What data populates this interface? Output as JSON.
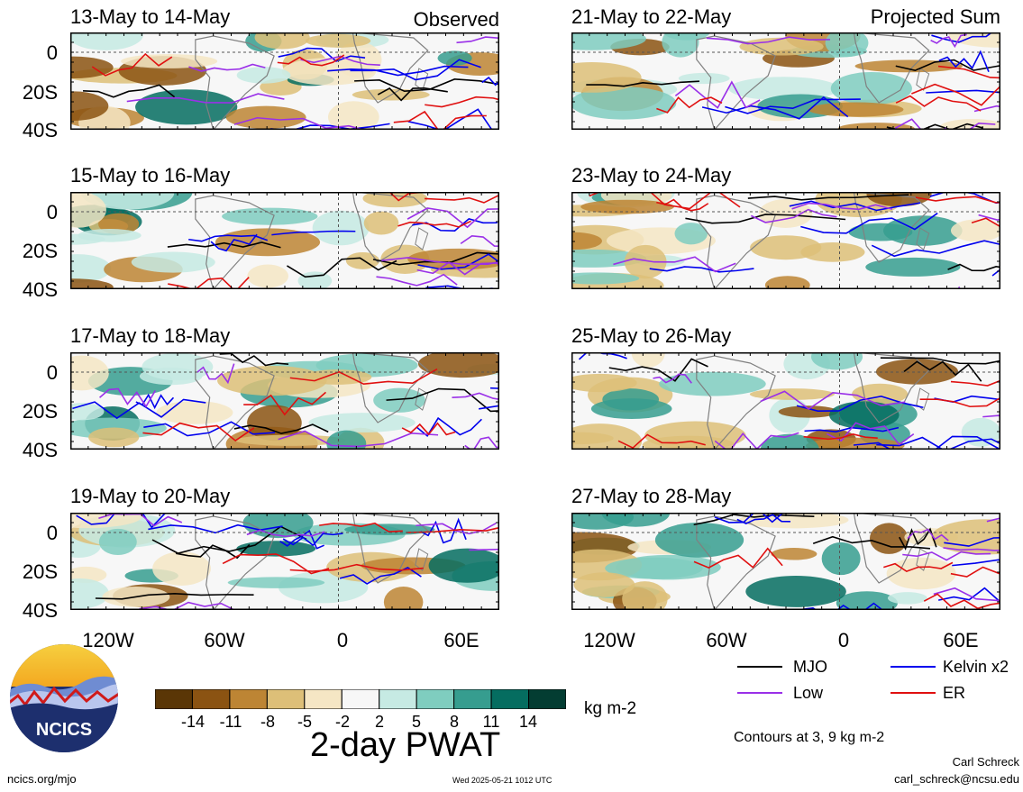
{
  "panels_left": [
    {
      "title": "13-May to 14-May",
      "tag": "Observed"
    },
    {
      "title": "15-May to 16-May",
      "tag": ""
    },
    {
      "title": "17-May to 18-May",
      "tag": ""
    },
    {
      "title": "19-May to 20-May",
      "tag": ""
    }
  ],
  "panels_right": [
    {
      "title": "21-May to 22-May",
      "tag": "Projected Sum"
    },
    {
      "title": "23-May to 24-May",
      "tag": ""
    },
    {
      "title": "25-May to 26-May",
      "tag": ""
    },
    {
      "title": "27-May to 28-May",
      "tag": ""
    }
  ],
  "lat_labels": [
    "0",
    "20S",
    "40S"
  ],
  "lon_labels": [
    "120W",
    "60W",
    "0",
    "60E"
  ],
  "legend": {
    "mjo": "MJO",
    "kelvin": "Kelvin x2",
    "low": "Low",
    "er": "ER",
    "colors": {
      "mjo": "#000000",
      "kelvin": "#0000ee",
      "low": "#9a30e8",
      "er": "#e01010"
    }
  },
  "colorbar": {
    "ticks": [
      "-14",
      "-11",
      "-8",
      "-5",
      "-2",
      "2",
      "5",
      "8",
      "11",
      "14"
    ],
    "colors": [
      "#5a3606",
      "#8b5312",
      "#bd8534",
      "#ddbf78",
      "#f5e6c4",
      "#f7f7f7",
      "#c6eae3",
      "#7fcdbf",
      "#369d8f",
      "#056d60",
      "#033d32"
    ],
    "units": "kg m-2"
  },
  "title": "2-day PWAT",
  "contours_note": "Contours at 3, 9 kg m-2",
  "logo_text": "NCICS",
  "footer": {
    "url": "ncics.org/mjo",
    "timestamp": "Wed 2025-05-21 1012 UTC",
    "author": "Carl Schreck",
    "email": "carl_schreck@ncsu.edu"
  }
}
